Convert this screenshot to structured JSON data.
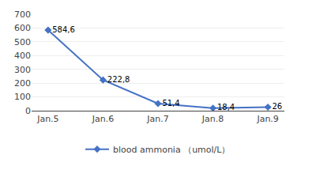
{
  "chart_data": {
    "type": "line",
    "categories": [
      "Jan.5",
      "Jan.6",
      "Jan.7",
      "Jan.8",
      "Jan.9"
    ],
    "series": [
      {
        "name": "blood ammonia （umol/L）",
        "color": "#4472C4",
        "marker": "diamond",
        "values": [
          584.6,
          222.8,
          51.4,
          18.4,
          26
        ],
        "value_labels": [
          "584,6",
          "222,8",
          "51,4",
          "18,4",
          "26"
        ]
      }
    ],
    "data_labels": true,
    "ylim": [
      0,
      700
    ],
    "yticks": [
      0,
      100,
      200,
      300,
      400,
      500,
      600,
      700
    ],
    "grid": true,
    "legend": "bottom"
  }
}
